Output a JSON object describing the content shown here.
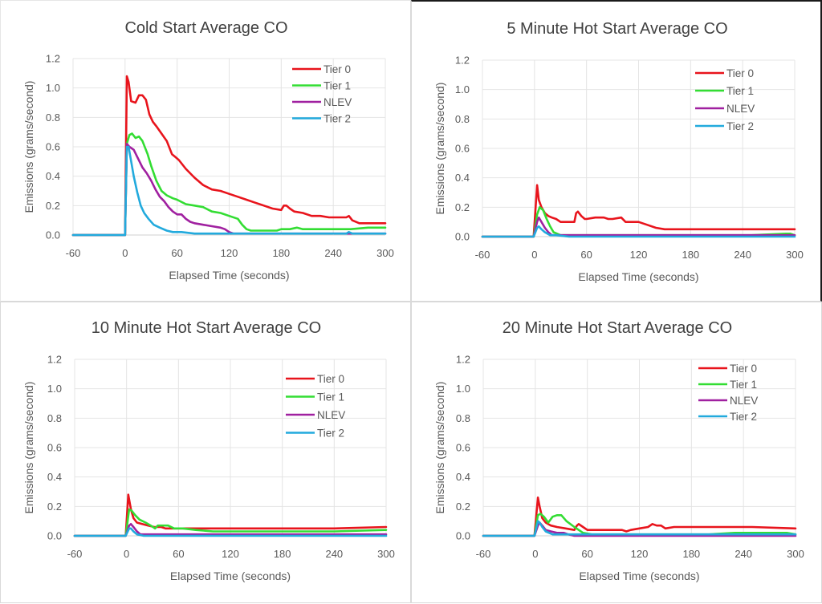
{
  "chart_data": [
    {
      "type": "line",
      "title": "Cold Start Average CO",
      "xlabel": "Elapsed Time (seconds)",
      "ylabel": "Emissions (grams/second)",
      "xlim": [
        -60,
        300
      ],
      "ylim": [
        0,
        1.2
      ],
      "xticks": [
        "-60",
        "0",
        "60",
        "120",
        "180",
        "240",
        "300"
      ],
      "yticks": [
        "0.0",
        "0.2",
        "0.4",
        "0.6",
        "0.8",
        "1.0",
        "1.2"
      ],
      "grid": true,
      "legend_position": "top-right",
      "series": [
        {
          "name": "Tier 0",
          "color": "#e8141c",
          "x": [
            -60,
            0,
            2,
            4,
            7,
            12,
            16,
            20,
            24,
            28,
            32,
            36,
            42,
            48,
            54,
            58,
            62,
            70,
            80,
            90,
            100,
            110,
            120,
            130,
            140,
            150,
            160,
            170,
            180,
            183,
            186,
            190,
            195,
            205,
            215,
            225,
            235,
            245,
            255,
            258,
            262,
            270,
            280,
            290,
            300
          ],
          "y": [
            0,
            0,
            1.08,
            1.04,
            0.91,
            0.9,
            0.95,
            0.95,
            0.92,
            0.82,
            0.77,
            0.74,
            0.69,
            0.64,
            0.55,
            0.53,
            0.51,
            0.45,
            0.39,
            0.34,
            0.31,
            0.3,
            0.28,
            0.26,
            0.24,
            0.22,
            0.2,
            0.18,
            0.17,
            0.2,
            0.2,
            0.18,
            0.16,
            0.15,
            0.13,
            0.13,
            0.12,
            0.12,
            0.12,
            0.13,
            0.1,
            0.08,
            0.08,
            0.08,
            0.08
          ]
        },
        {
          "name": "Tier 1",
          "color": "#33dd33",
          "x": [
            -60,
            0,
            2,
            5,
            8,
            12,
            16,
            20,
            26,
            30,
            36,
            42,
            48,
            55,
            60,
            70,
            80,
            90,
            100,
            110,
            120,
            130,
            135,
            140,
            145,
            160,
            175,
            180,
            190,
            198,
            205,
            220,
            240,
            260,
            280,
            300
          ],
          "y": [
            0,
            0,
            0.62,
            0.68,
            0.69,
            0.66,
            0.67,
            0.64,
            0.55,
            0.47,
            0.37,
            0.3,
            0.27,
            0.25,
            0.24,
            0.21,
            0.2,
            0.19,
            0.16,
            0.15,
            0.13,
            0.11,
            0.07,
            0.04,
            0.03,
            0.03,
            0.03,
            0.04,
            0.04,
            0.05,
            0.04,
            0.04,
            0.04,
            0.04,
            0.05,
            0.05
          ]
        },
        {
          "name": "NLEV",
          "color": "#a020a0",
          "x": [
            -60,
            0,
            2,
            5,
            10,
            15,
            20,
            25,
            30,
            35,
            40,
            45,
            50,
            55,
            60,
            65,
            70,
            75,
            80,
            90,
            100,
            110,
            115,
            120,
            125,
            130,
            150,
            170,
            180,
            200,
            300
          ],
          "y": [
            0,
            0,
            0.62,
            0.6,
            0.58,
            0.52,
            0.46,
            0.42,
            0.37,
            0.31,
            0.26,
            0.23,
            0.19,
            0.16,
            0.14,
            0.14,
            0.11,
            0.09,
            0.08,
            0.07,
            0.06,
            0.05,
            0.04,
            0.02,
            0.01,
            0.01,
            0.01,
            0.01,
            0.01,
            0.01,
            0.01
          ]
        },
        {
          "name": "Tier 2",
          "color": "#22aadd",
          "x": [
            -60,
            0,
            2,
            4,
            7,
            10,
            14,
            18,
            22,
            27,
            33,
            40,
            48,
            55,
            65,
            80,
            100,
            150,
            200,
            255,
            258,
            262,
            300
          ],
          "y": [
            0,
            0,
            0.6,
            0.6,
            0.5,
            0.4,
            0.29,
            0.2,
            0.15,
            0.11,
            0.07,
            0.05,
            0.03,
            0.02,
            0.02,
            0.01,
            0.01,
            0.01,
            0.01,
            0.01,
            0.02,
            0.01,
            0.01
          ]
        }
      ]
    },
    {
      "type": "line",
      "title": "5 Minute Hot Start Average CO",
      "xlabel": "Elapsed Time (seconds)",
      "ylabel": "Emissions (grams/second)",
      "xlim": [
        -60,
        300
      ],
      "ylim": [
        0,
        1.2
      ],
      "xticks": [
        "-60",
        "0",
        "60",
        "120",
        "180",
        "240",
        "300"
      ],
      "yticks": [
        "0.0",
        "0.2",
        "0.4",
        "0.6",
        "0.8",
        "1.0",
        "1.2"
      ],
      "grid": true,
      "legend_position": "top-right",
      "series": [
        {
          "name": "Tier 0",
          "color": "#e8141c",
          "x": [
            -60,
            -1,
            3,
            5,
            8,
            12,
            16,
            20,
            25,
            30,
            38,
            46,
            48,
            50,
            54,
            58,
            60,
            70,
            80,
            85,
            90,
            100,
            105,
            110,
            120,
            130,
            140,
            150,
            160,
            200,
            250,
            300
          ],
          "y": [
            0,
            0,
            0.35,
            0.25,
            0.2,
            0.16,
            0.14,
            0.13,
            0.12,
            0.1,
            0.1,
            0.1,
            0.16,
            0.17,
            0.14,
            0.12,
            0.12,
            0.13,
            0.13,
            0.12,
            0.12,
            0.13,
            0.1,
            0.1,
            0.1,
            0.08,
            0.06,
            0.05,
            0.05,
            0.05,
            0.05,
            0.05
          ]
        },
        {
          "name": "Tier 1",
          "color": "#33dd33",
          "x": [
            -60,
            -1,
            3,
            6,
            10,
            14,
            18,
            22,
            30,
            60,
            95,
            100,
            150,
            200,
            250,
            290,
            295,
            300
          ],
          "y": [
            0,
            0,
            0.15,
            0.2,
            0.18,
            0.12,
            0.07,
            0.03,
            0.01,
            0.01,
            0.01,
            0.01,
            0.01,
            0.01,
            0.01,
            0.02,
            0.02,
            0.01
          ]
        },
        {
          "name": "NLEV",
          "color": "#a020a0",
          "x": [
            -60,
            -1,
            3,
            5,
            8,
            12,
            16,
            20,
            30,
            300
          ],
          "y": [
            0,
            0,
            0.1,
            0.13,
            0.1,
            0.06,
            0.03,
            0.01,
            0.01,
            0.01
          ]
        },
        {
          "name": "Tier 2",
          "color": "#22aadd",
          "x": [
            -60,
            -1,
            3,
            5,
            8,
            12,
            18,
            25,
            40,
            300
          ],
          "y": [
            0,
            0,
            0.06,
            0.07,
            0.05,
            0.03,
            0.01,
            0.01,
            0,
            0
          ]
        }
      ]
    },
    {
      "type": "line",
      "title": "10 Minute Hot Start Average CO",
      "xlabel": "Elapsed Time (seconds)",
      "ylabel": "Emissions (grams/second)",
      "xlim": [
        -60,
        300
      ],
      "ylim": [
        0,
        1.2
      ],
      "xticks": [
        "-60",
        "0",
        "60",
        "120",
        "180",
        "240",
        "300"
      ],
      "yticks": [
        "0.0",
        "0.2",
        "0.4",
        "0.6",
        "0.8",
        "1.0",
        "1.2"
      ],
      "grid": true,
      "legend_position": "top-right",
      "series": [
        {
          "name": "Tier 0",
          "color": "#e8141c",
          "x": [
            -60,
            -1,
            2,
            5,
            8,
            12,
            18,
            25,
            32,
            40,
            45,
            50,
            60,
            90,
            120,
            180,
            240,
            300
          ],
          "y": [
            0,
            0,
            0.28,
            0.18,
            0.12,
            0.09,
            0.08,
            0.07,
            0.06,
            0.06,
            0.05,
            0.05,
            0.05,
            0.05,
            0.05,
            0.05,
            0.05,
            0.06
          ]
        },
        {
          "name": "Tier 1",
          "color": "#33dd33",
          "x": [
            -60,
            -1,
            3,
            6,
            10,
            15,
            22,
            28,
            33,
            36,
            42,
            48,
            55,
            65,
            80,
            100,
            130,
            160,
            200,
            240,
            300
          ],
          "y": [
            0,
            0,
            0.18,
            0.17,
            0.14,
            0.11,
            0.09,
            0.07,
            0.05,
            0.07,
            0.07,
            0.07,
            0.05,
            0.05,
            0.04,
            0.03,
            0.03,
            0.03,
            0.03,
            0.03,
            0.04
          ]
        },
        {
          "name": "NLEV",
          "color": "#a020a0",
          "x": [
            -60,
            -1,
            3,
            5,
            8,
            12,
            16,
            20,
            300
          ],
          "y": [
            0,
            0,
            0.07,
            0.08,
            0.06,
            0.03,
            0.01,
            0.01,
            0.01
          ]
        },
        {
          "name": "Tier 2",
          "color": "#22aadd",
          "x": [
            -60,
            -1,
            3,
            5,
            8,
            12,
            20,
            300
          ],
          "y": [
            0,
            0,
            0.05,
            0.05,
            0.03,
            0.01,
            0,
            0
          ]
        }
      ]
    },
    {
      "type": "line",
      "title": "20 Minute Hot Start Average CO",
      "xlabel": "Elapsed Time (seconds)",
      "ylabel": "Emissions (grams/second)",
      "xlim": [
        -60,
        300
      ],
      "ylim": [
        0,
        1.2
      ],
      "xticks": [
        "-60",
        "0",
        "60",
        "120",
        "180",
        "240",
        "300"
      ],
      "yticks": [
        "0.0",
        "0.2",
        "0.4",
        "0.6",
        "0.8",
        "1.0",
        "1.2"
      ],
      "grid": true,
      "legend_position": "top-right",
      "series": [
        {
          "name": "Tier 0",
          "color": "#e8141c",
          "x": [
            -60,
            -1,
            3,
            5,
            8,
            12,
            18,
            25,
            35,
            45,
            48,
            50,
            55,
            60,
            70,
            90,
            100,
            105,
            110,
            120,
            130,
            135,
            140,
            145,
            150,
            160,
            200,
            250,
            300
          ],
          "y": [
            0,
            0,
            0.26,
            0.2,
            0.12,
            0.09,
            0.07,
            0.06,
            0.05,
            0.04,
            0.07,
            0.08,
            0.06,
            0.04,
            0.04,
            0.04,
            0.04,
            0.03,
            0.04,
            0.05,
            0.06,
            0.08,
            0.07,
            0.07,
            0.05,
            0.06,
            0.06,
            0.06,
            0.05
          ]
        },
        {
          "name": "Tier 1",
          "color": "#33dd33",
          "x": [
            -60,
            -1,
            3,
            6,
            10,
            15,
            20,
            25,
            30,
            36,
            45,
            55,
            65,
            100,
            200,
            230,
            250,
            270,
            290,
            300
          ],
          "y": [
            0,
            0,
            0.14,
            0.15,
            0.13,
            0.09,
            0.13,
            0.14,
            0.14,
            0.1,
            0.06,
            0.02,
            0.01,
            0.01,
            0.01,
            0.02,
            0.02,
            0.02,
            0.02,
            0.01
          ]
        },
        {
          "name": "NLEV",
          "color": "#a020a0",
          "x": [
            -60,
            -1,
            3,
            5,
            8,
            12,
            18,
            25,
            33,
            38,
            45,
            300
          ],
          "y": [
            0,
            0,
            0.07,
            0.09,
            0.07,
            0.04,
            0.03,
            0.02,
            0.02,
            0.01,
            0,
            0
          ]
        },
        {
          "name": "Tier 2",
          "color": "#22aadd",
          "x": [
            -60,
            -1,
            3,
            5,
            8,
            12,
            20,
            30,
            300
          ],
          "y": [
            0,
            0,
            0.1,
            0.09,
            0.06,
            0.03,
            0.01,
            0.01,
            0.01
          ]
        }
      ]
    }
  ]
}
